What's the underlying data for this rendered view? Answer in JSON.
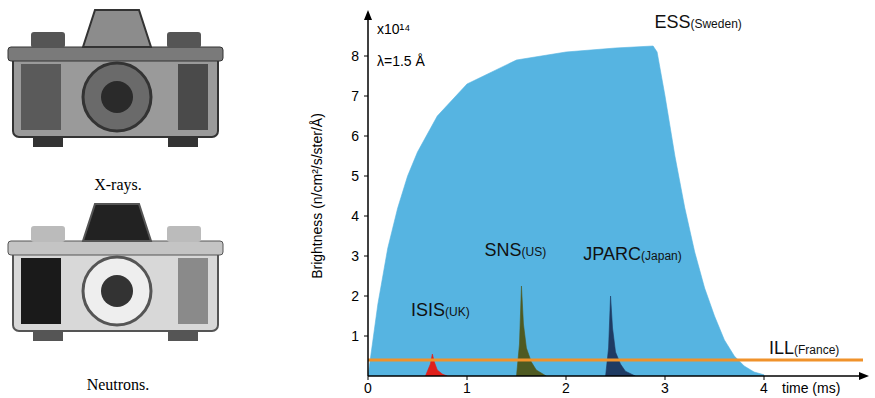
{
  "images": [
    {
      "caption": "X-rays."
    },
    {
      "caption": "Neutrons."
    }
  ],
  "chart_data": {
    "type": "area",
    "x_label": "time (ms)",
    "y_label": "Brightness (n/cm²/s/ster/Å)",
    "annotations": [
      "x10¹⁴",
      "λ=1.5 Å"
    ],
    "xlim": [
      0,
      5
    ],
    "ylim": [
      0,
      9
    ],
    "xticks": [
      0,
      1,
      2,
      3,
      4
    ],
    "yticks": [
      1,
      2,
      3,
      4,
      5,
      6,
      7,
      8
    ],
    "series": [
      {
        "name": "ESS(Sweden)",
        "type": "area",
        "color": "#56b4e1",
        "x": [
          0,
          0.1,
          0.2,
          0.3,
          0.4,
          0.5,
          0.7,
          1.0,
          1.5,
          2.0,
          2.5,
          2.88,
          2.92,
          3.0,
          3.1,
          3.2,
          3.3,
          3.4,
          3.5,
          3.6,
          3.7,
          3.8,
          3.9,
          4.0
        ],
        "values": [
          0,
          1.8,
          3.2,
          4.2,
          5.0,
          5.6,
          6.5,
          7.3,
          7.9,
          8.1,
          8.2,
          8.25,
          8.1,
          7.0,
          5.5,
          4.2,
          3.1,
          2.2,
          1.5,
          0.9,
          0.5,
          0.25,
          0.1,
          0.03
        ]
      },
      {
        "name": "ISIS(UK)",
        "type": "area",
        "color": "#e0201b",
        "x": [
          0.58,
          0.63,
          0.65,
          0.67,
          0.7,
          0.75,
          0.8
        ],
        "values": [
          0,
          0.3,
          0.55,
          0.35,
          0.15,
          0.05,
          0
        ]
      },
      {
        "name": "SNS(US)",
        "type": "area",
        "color": "#4f5a22",
        "x": [
          1.5,
          1.53,
          1.55,
          1.57,
          1.6,
          1.65,
          1.7,
          1.8
        ],
        "values": [
          0,
          0.8,
          2.25,
          1.3,
          0.7,
          0.35,
          0.15,
          0
        ]
      },
      {
        "name": "JPARC(Japan)",
        "type": "area",
        "color": "#1f3b63",
        "x": [
          2.4,
          2.43,
          2.45,
          2.47,
          2.5,
          2.55,
          2.6,
          2.7
        ],
        "values": [
          0,
          0.7,
          2.0,
          1.2,
          0.6,
          0.3,
          0.12,
          0
        ]
      },
      {
        "name": "ILL(France)",
        "type": "line",
        "color": "#f0922b",
        "x": [
          0,
          5
        ],
        "values": [
          0.4,
          0.4
        ]
      }
    ]
  }
}
